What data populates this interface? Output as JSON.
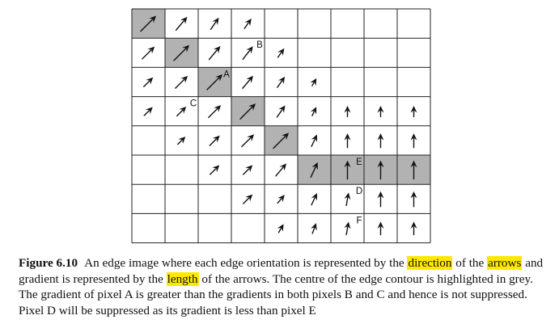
{
  "figure": {
    "grid": {
      "rows": 8,
      "cols": 9,
      "highlight_color": "#b2b2b2",
      "highlighted": [
        [
          0,
          0
        ],
        [
          1,
          1
        ],
        [
          2,
          2
        ],
        [
          3,
          3
        ],
        [
          4,
          4
        ],
        [
          5,
          5
        ],
        [
          5,
          6
        ],
        [
          5,
          7
        ],
        [
          5,
          8
        ]
      ],
      "arrows": [
        {
          "r": 0,
          "c": 0,
          "angle": 45,
          "len": 1.0
        },
        {
          "r": 0,
          "c": 1,
          "angle": 50,
          "len": 0.8
        },
        {
          "r": 0,
          "c": 2,
          "angle": 55,
          "len": 0.65
        },
        {
          "r": 0,
          "c": 3,
          "angle": 55,
          "len": 0.55
        },
        {
          "r": 1,
          "c": 0,
          "angle": 45,
          "len": 0.8
        },
        {
          "r": 1,
          "c": 1,
          "angle": 45,
          "len": 1.0
        },
        {
          "r": 1,
          "c": 2,
          "angle": 50,
          "len": 0.8
        },
        {
          "r": 1,
          "c": 3,
          "angle": 52,
          "len": 0.75
        },
        {
          "r": 1,
          "c": 4,
          "angle": 55,
          "len": 0.5
        },
        {
          "r": 2,
          "c": 0,
          "angle": 45,
          "len": 0.6
        },
        {
          "r": 2,
          "c": 1,
          "angle": 45,
          "len": 0.8
        },
        {
          "r": 2,
          "c": 2,
          "angle": 45,
          "len": 1.0
        },
        {
          "r": 2,
          "c": 3,
          "angle": 50,
          "len": 0.75
        },
        {
          "r": 2,
          "c": 4,
          "angle": 55,
          "len": 0.6
        },
        {
          "r": 2,
          "c": 5,
          "angle": 60,
          "len": 0.4
        },
        {
          "r": 3,
          "c": 0,
          "angle": 45,
          "len": 0.55
        },
        {
          "r": 3,
          "c": 1,
          "angle": 45,
          "len": 0.6
        },
        {
          "r": 3,
          "c": 2,
          "angle": 45,
          "len": 0.8
        },
        {
          "r": 3,
          "c": 3,
          "angle": 45,
          "len": 1.0
        },
        {
          "r": 3,
          "c": 4,
          "angle": 55,
          "len": 0.65
        },
        {
          "r": 3,
          "c": 5,
          "angle": 65,
          "len": 0.45
        },
        {
          "r": 3,
          "c": 6,
          "angle": 90,
          "len": 0.5
        },
        {
          "r": 3,
          "c": 7,
          "angle": 90,
          "len": 0.5
        },
        {
          "r": 3,
          "c": 8,
          "angle": 90,
          "len": 0.5
        },
        {
          "r": 4,
          "c": 1,
          "angle": 45,
          "len": 0.5
        },
        {
          "r": 4,
          "c": 2,
          "angle": 45,
          "len": 0.65
        },
        {
          "r": 4,
          "c": 3,
          "angle": 45,
          "len": 0.8
        },
        {
          "r": 4,
          "c": 4,
          "angle": 45,
          "len": 1.0
        },
        {
          "r": 4,
          "c": 5,
          "angle": 65,
          "len": 0.6
        },
        {
          "r": 4,
          "c": 6,
          "angle": 90,
          "len": 0.65
        },
        {
          "r": 4,
          "c": 7,
          "angle": 90,
          "len": 0.65
        },
        {
          "r": 4,
          "c": 8,
          "angle": 90,
          "len": 0.65
        },
        {
          "r": 5,
          "c": 2,
          "angle": 45,
          "len": 0.6
        },
        {
          "r": 5,
          "c": 3,
          "angle": 45,
          "len": 0.6
        },
        {
          "r": 5,
          "c": 4,
          "angle": 50,
          "len": 0.75
        },
        {
          "r": 5,
          "c": 5,
          "angle": 65,
          "len": 0.75
        },
        {
          "r": 5,
          "c": 6,
          "angle": 90,
          "len": 0.85
        },
        {
          "r": 5,
          "c": 7,
          "angle": 90,
          "len": 0.85
        },
        {
          "r": 5,
          "c": 8,
          "angle": 90,
          "len": 0.85
        },
        {
          "r": 6,
          "c": 3,
          "angle": 45,
          "len": 0.6
        },
        {
          "r": 6,
          "c": 4,
          "angle": 50,
          "len": 0.5
        },
        {
          "r": 6,
          "c": 5,
          "angle": 65,
          "len": 0.6
        },
        {
          "r": 6,
          "c": 6,
          "angle": 80,
          "len": 0.6
        },
        {
          "r": 6,
          "c": 7,
          "angle": 90,
          "len": 0.7
        },
        {
          "r": 6,
          "c": 8,
          "angle": 90,
          "len": 0.7
        },
        {
          "r": 7,
          "c": 4,
          "angle": 60,
          "len": 0.45
        },
        {
          "r": 7,
          "c": 5,
          "angle": 70,
          "len": 0.5
        },
        {
          "r": 7,
          "c": 6,
          "angle": 80,
          "len": 0.6
        },
        {
          "r": 7,
          "c": 7,
          "angle": 90,
          "len": 0.6
        },
        {
          "r": 7,
          "c": 8,
          "angle": 90,
          "len": 0.6
        }
      ],
      "labels": [
        {
          "text": "B",
          "r": 1,
          "c": 3,
          "pos": "top-right"
        },
        {
          "text": "A",
          "r": 2,
          "c": 2,
          "pos": "top-right"
        },
        {
          "text": "C",
          "r": 3,
          "c": 1,
          "pos": "top-right"
        },
        {
          "text": "E",
          "r": 5,
          "c": 6,
          "pos": "top-right"
        },
        {
          "text": "D",
          "r": 6,
          "c": 6,
          "pos": "top-right"
        },
        {
          "text": "F",
          "r": 7,
          "c": 6,
          "pos": "top-right"
        }
      ]
    }
  },
  "caption": {
    "label": "Figure 6.10",
    "text_1": "An edge image where each edge orientation is represented by the ",
    "highlight_1": "direction",
    "text_2": " of the ",
    "highlight_2": "arrows",
    "text_3": " and gradient is represented by the ",
    "highlight_3": "length",
    "text_4": " of the arrows. The centre of the edge contour is highlighted in grey. The gradient of pixel A is greater than the gradients in both pixels B and C and hence is not suppressed. Pixel D will be suppressed as its gradient is less than pixel E",
    "highlight_color": "#ffe800"
  }
}
